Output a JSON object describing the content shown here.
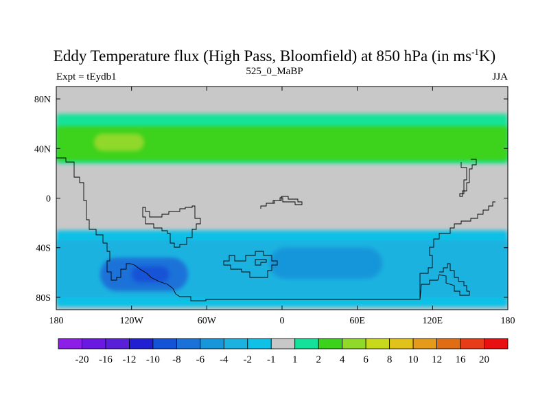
{
  "chart_data": {
    "type": "heatmap",
    "title_prefix": "Eddy Temperature flux (High Pass, Bloomfield) at 850 hPa (in ms",
    "title_sup": "-1",
    "title_suffix": "K)",
    "left_label": "Expt = tEydb1",
    "center_label": "525_0_MaBP",
    "right_label": "JJA",
    "x_ticks": [
      "180",
      "120W",
      "60W",
      "0",
      "60E",
      "120E",
      "180"
    ],
    "y_ticks": [
      "80N",
      "40N",
      "0",
      "40S",
      "80S"
    ],
    "xlim": [
      -180,
      180
    ],
    "ylim": [
      -90,
      90
    ],
    "colorbar": {
      "labels": [
        "-20",
        "-16",
        "-12",
        "-10",
        "-8",
        "-6",
        "-4",
        "-2",
        "-1",
        "1",
        "2",
        "4",
        "6",
        "8",
        "10",
        "12",
        "16",
        "20"
      ],
      "colors": [
        "#8c1ee6",
        "#6a1ae0",
        "#5a20d8",
        "#2020d2",
        "#1452d6",
        "#1a72d8",
        "#1896da",
        "#1cb2e0",
        "#10c0e6",
        "#c8c8c8",
        "#14e29a",
        "#3cd21c",
        "#90d82a",
        "#c8d81c",
        "#e0c21a",
        "#e49a1a",
        "#e06c14",
        "#e63c1a",
        "#e81010"
      ],
      "levels": [
        "< -20",
        "-20 to -16",
        "-16 to -12",
        "-12 to -10",
        "-10 to -8",
        "-8 to -6",
        "-6 to -4",
        "-4 to -2",
        "-2 to -1",
        "-1 to 1",
        "1 to 2",
        "2 to 4",
        "4 to 6",
        "6 to 8",
        "8 to 10",
        "10 to 12",
        "12 to 16",
        "16 to 20",
        "> 20"
      ]
    },
    "features": [
      {
        "name": "northern-band",
        "band": "1 to 2",
        "lon": [
          -180,
          180
        ],
        "lat": [
          28,
          68
        ]
      },
      {
        "name": "northern-core",
        "band": "2 to 4",
        "lon": [
          -180,
          180
        ],
        "lat": [
          30,
          58
        ]
      },
      {
        "name": "north-pacific-max",
        "band": "4 to 6",
        "lon": [
          -150,
          -110
        ],
        "lat": [
          38,
          52
        ]
      },
      {
        "name": "southern-band",
        "band": "-2 to -1",
        "lon": [
          -180,
          180
        ],
        "lat": [
          -88,
          -26
        ]
      },
      {
        "name": "southern-core",
        "band": "-4 to -2",
        "lon": [
          -180,
          180
        ],
        "lat": [
          -80,
          -34
        ]
      },
      {
        "name": "south-pacific-max",
        "band": "-8 to -6",
        "lon": [
          -145,
          -75
        ],
        "lat": [
          -75,
          -48
        ]
      },
      {
        "name": "south-pacific-peak",
        "band": "-10 to -8",
        "lon": [
          -120,
          -90
        ],
        "lat": [
          -68,
          -55
        ]
      },
      {
        "name": "south-indian-max",
        "band": "-6 to -4",
        "lon": [
          -10,
          80
        ],
        "lat": [
          -65,
          -40
        ]
      }
    ]
  }
}
